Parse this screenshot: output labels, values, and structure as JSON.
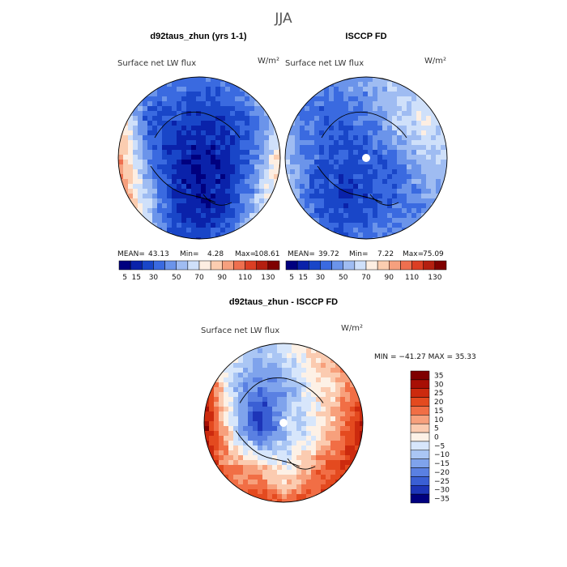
{
  "chart_data": [
    {
      "type": "heatmap",
      "title": "d92taus_zhun (yrs 1-1)",
      "subtitle": "Surface net LW flux",
      "units": "W/m²",
      "stats": {
        "mean_label": "MEAN=",
        "mean": "43.13",
        "min_label": "Min=",
        "min": "4.28",
        "max_label": "Max=",
        "max": "108.61"
      },
      "colorbar_ticks": [
        "5",
        "15",
        "30",
        "50",
        "70",
        "90",
        "110",
        "130"
      ],
      "field": [
        [
          60,
          45,
          40,
          35,
          40,
          60,
          80
        ],
        [
          85,
          30,
          25,
          20,
          25,
          35,
          70
        ],
        [
          95,
          45,
          15,
          10,
          15,
          40,
          85
        ],
        [
          100,
          60,
          20,
          10,
          20,
          55,
          95
        ],
        [
          90,
          55,
          30,
          25,
          40,
          70,
          80
        ]
      ]
    },
    {
      "type": "heatmap",
      "title": "ISCCP FD",
      "subtitle": "Surface net LW flux",
      "units": "W/m²",
      "stats": {
        "mean_label": "MEAN=",
        "mean": "39.72",
        "min_label": "Min=",
        "min": "7.22",
        "max_label": "Max=",
        "max": "75.09"
      },
      "colorbar_ticks": [
        "5",
        "15",
        "30",
        "50",
        "70",
        "90",
        "110",
        "130"
      ],
      "field": [
        [
          45,
          40,
          45,
          50,
          60,
          55,
          50
        ],
        [
          50,
          35,
          30,
          40,
          60,
          70,
          60
        ],
        [
          55,
          35,
          25,
          30,
          35,
          55,
          60
        ],
        [
          60,
          30,
          20,
          25,
          35,
          45,
          55
        ],
        [
          55,
          40,
          35,
          40,
          45,
          50,
          55
        ]
      ]
    },
    {
      "type": "heatmap",
      "title": "d92taus_zhun - ISCCP FD",
      "subtitle": "Surface net LW flux",
      "units": "W/m²",
      "stats_text": "MIN = −41.27 MAX =  35.33",
      "colorbar_ticks": [
        "35",
        "30",
        "25",
        "20",
        "15",
        "10",
        "5",
        "0",
        "−5",
        "−10",
        "−15",
        "−20",
        "−25",
        "−30",
        "−35"
      ],
      "field": [
        [
          -5,
          0,
          -10,
          -5,
          5,
          15,
          20
        ],
        [
          25,
          -10,
          -20,
          -15,
          0,
          5,
          20
        ],
        [
          30,
          -5,
          -35,
          -10,
          -5,
          10,
          30
        ],
        [
          25,
          10,
          5,
          -5,
          10,
          20,
          30
        ],
        [
          20,
          15,
          25,
          15,
          20,
          30,
          25
        ]
      ]
    }
  ],
  "figure": {
    "title": "JJA",
    "colors": {
      "seq": [
        "#00007f",
        "#0a22aa",
        "#1946c8",
        "#3a6ae0",
        "#6b94ea",
        "#9fbcf2",
        "#cfe0fa",
        "#fdeee2",
        "#fbcdb0",
        "#f6a07e",
        "#ee6f4f",
        "#dc3f24",
        "#b41f10",
        "#7f0000"
      ],
      "diff": [
        "#7f0000",
        "#a80f05",
        "#cc2a0e",
        "#e44a1f",
        "#f16e45",
        "#f7a07c",
        "#fbcbb0",
        "#fdf1e6",
        "#d7e6fb",
        "#aac6f4",
        "#7fa3ec",
        "#5a80e2",
        "#3a5fd4",
        "#1d35b8",
        "#00007f"
      ]
    }
  }
}
